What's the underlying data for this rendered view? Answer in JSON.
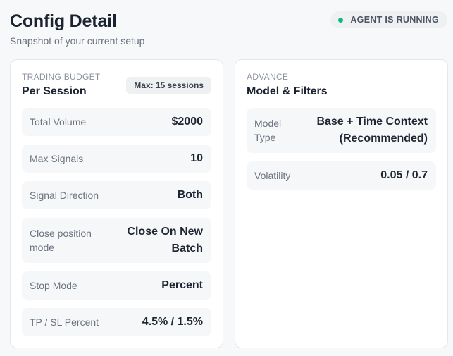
{
  "header": {
    "title": "Config Detail",
    "subtitle": "Snapshot of your current setup",
    "status": {
      "label": "AGENT IS RUNNING",
      "color": "#10b981"
    }
  },
  "trading_budget": {
    "eyebrow": "TRADING BUDGET",
    "title": "Per Session",
    "badge": "Max: 15 sessions",
    "rows": [
      {
        "label": "Total Volume",
        "value": "$2000"
      },
      {
        "label": "Max Signals",
        "value": "10"
      },
      {
        "label": "Signal Direction",
        "value": "Both"
      },
      {
        "label": "Close position mode",
        "value": "Close On New Batch"
      },
      {
        "label": "Stop Mode",
        "value": "Percent"
      },
      {
        "label": "TP / SL Percent",
        "value": "4.5% / 1.5%"
      }
    ]
  },
  "advance": {
    "eyebrow": "ADVANCE",
    "title": "Model & Filters",
    "rows": [
      {
        "label": "Model Type",
        "value": "Base + Time Context (Recommended)"
      },
      {
        "label": "Volatility",
        "value": "0.05 / 0.7"
      }
    ]
  }
}
